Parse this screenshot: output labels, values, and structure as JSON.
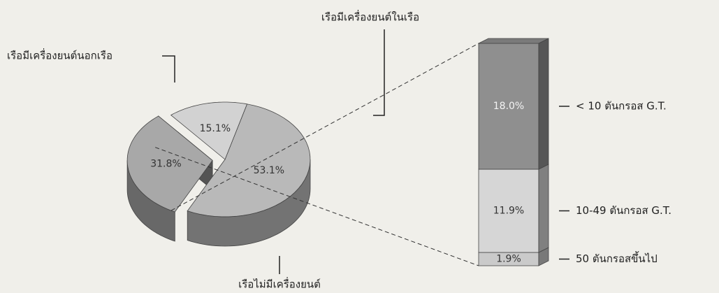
{
  "chart_data": {
    "type": "pie-of-bar",
    "categories": [
      "เรือมีเครื่องยนต์นอกเรือ",
      "เรือมีเครื่องยนต์ในเรือ",
      "เรือไม่มีเครื่องยนต์"
    ],
    "values": [
      53.1,
      31.8,
      15.1
    ],
    "value_labels": [
      "53.1%",
      "31.8%",
      "15.1%"
    ],
    "colors": [
      "#b9b9b9",
      "#a8a8a8",
      "#d2d2d2"
    ],
    "breakdown": {
      "categories": [
        "< 10 ตันกรอส G.T.",
        "10-49 ตันกรอส G.T.",
        "50 ตันกรอสขึ้นไป"
      ],
      "values": [
        18.0,
        11.9,
        1.9
      ],
      "value_labels": [
        "18.0%",
        "11.9%",
        "1.9%"
      ],
      "colors": [
        "#8f8f8f",
        "#d6d6d6",
        "#cacaca"
      ]
    }
  }
}
